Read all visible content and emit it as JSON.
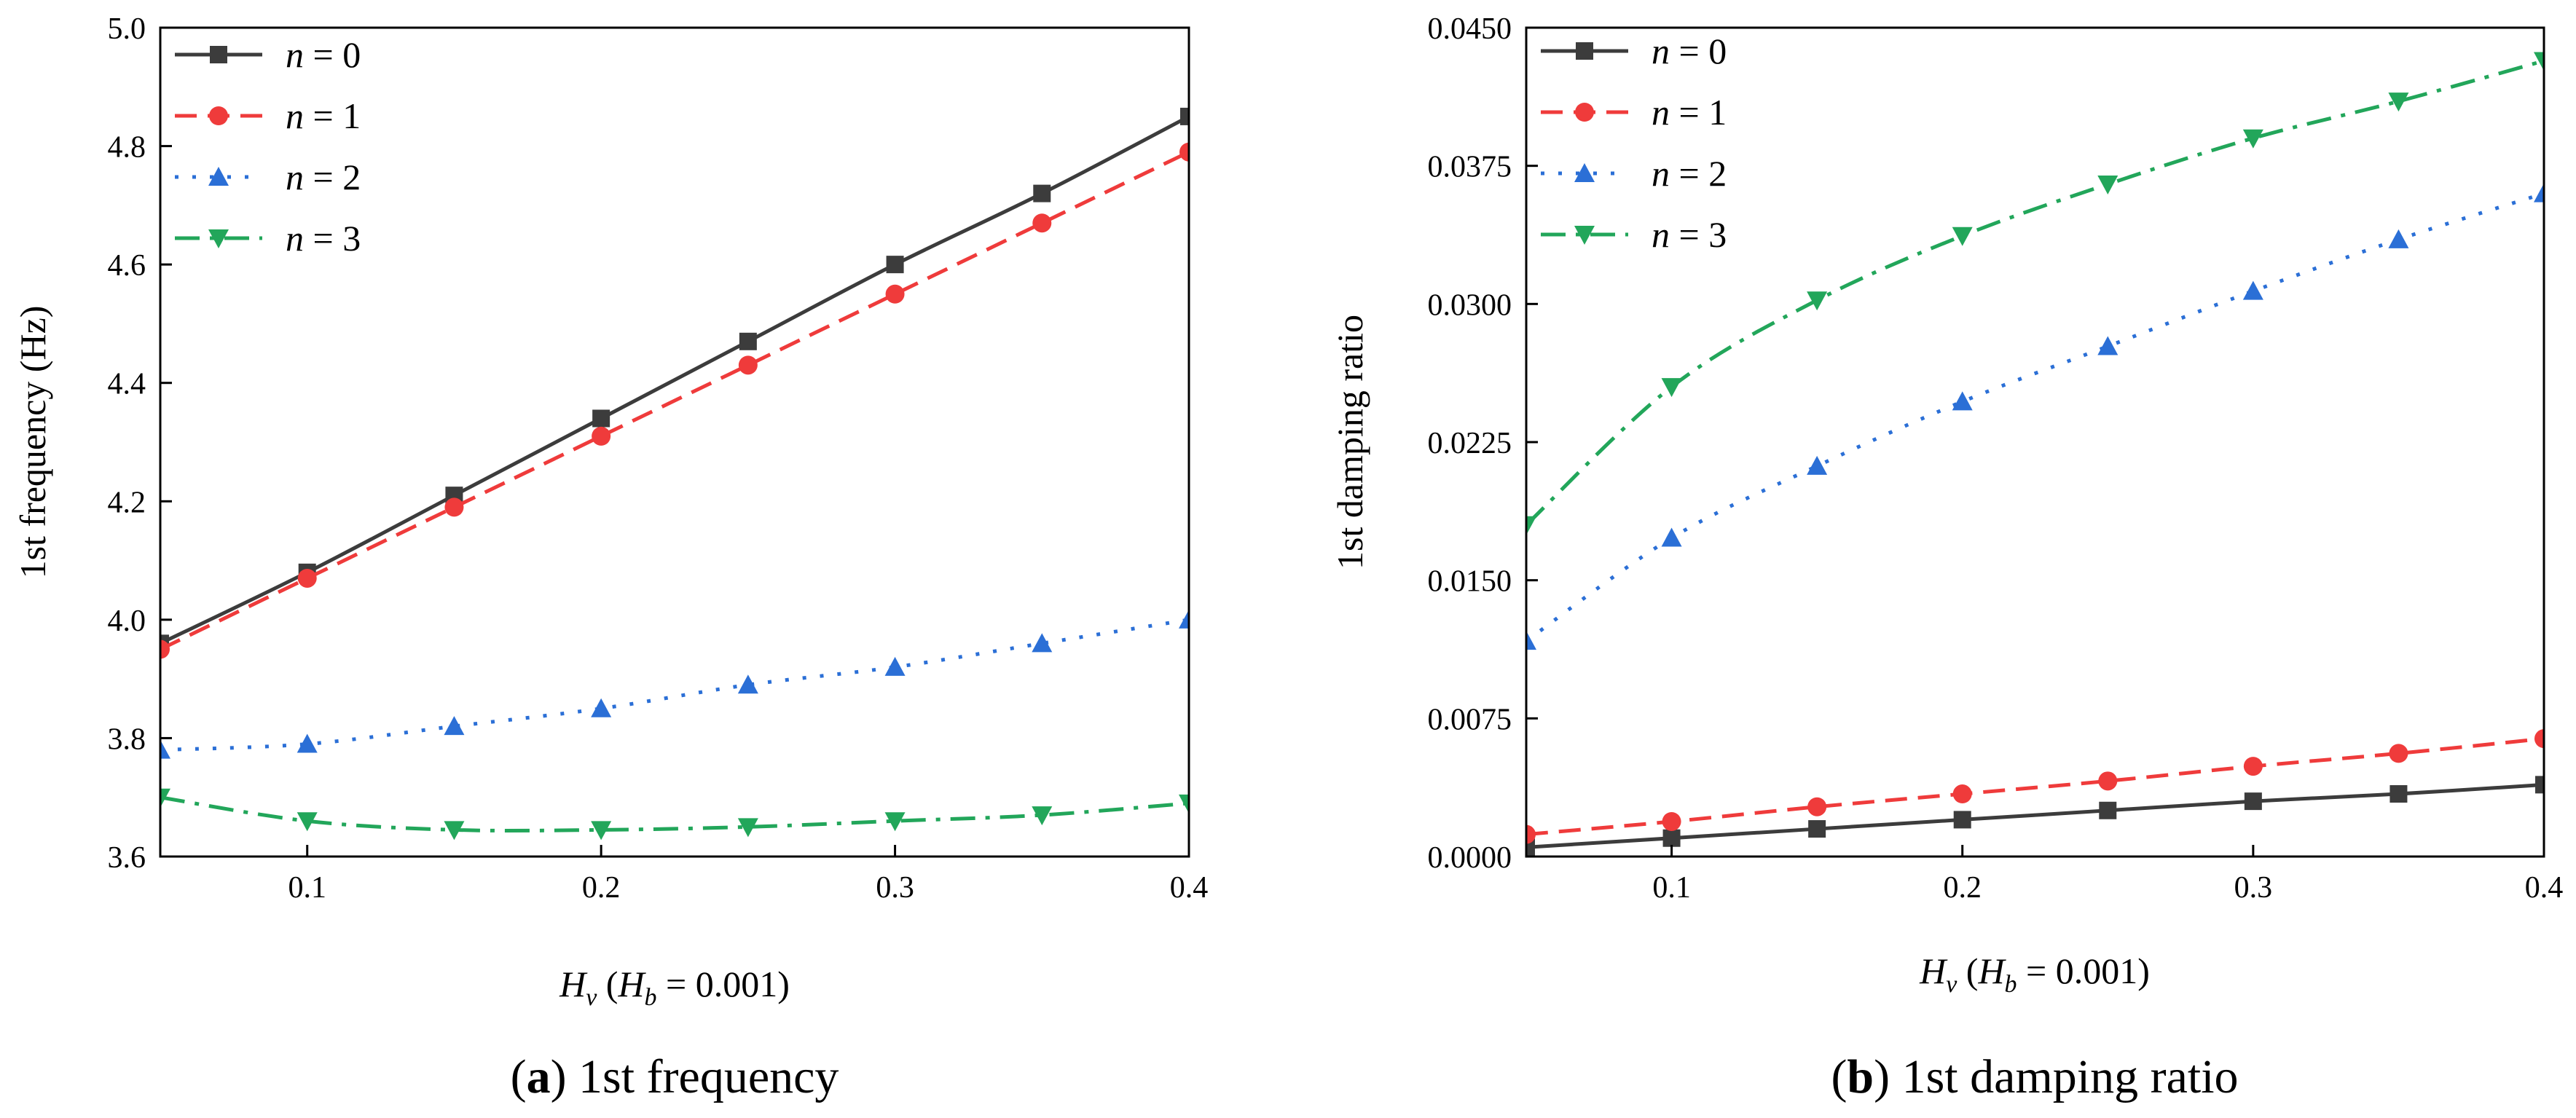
{
  "colors": {
    "n0": "#3c3c3c",
    "n1": "#ef3b3b",
    "n2": "#2b6fd6",
    "n3": "#22a65a"
  },
  "chart_data": [
    {
      "type": "line",
      "caption": {
        "letter": "a",
        "text": " 1st frequency"
      },
      "ylabel": "1st frequency (Hz)",
      "xlabel": {
        "main": "H",
        "sub": "v",
        "open": " (",
        "inner": "H",
        "inner_sub": "b",
        "rest": " = 0.001)"
      },
      "xlim": [
        0.05,
        0.4
      ],
      "ylim": [
        3.6,
        5.0
      ],
      "xticks": [
        0.1,
        0.2,
        0.3,
        0.4
      ],
      "xtick_labels": [
        "0.1",
        "0.2",
        "0.3",
        "0.4"
      ],
      "yticks": [
        3.6,
        3.8,
        4.0,
        4.2,
        4.4,
        4.6,
        4.8,
        5.0
      ],
      "ytick_labels": [
        "3.6",
        "3.8",
        "4.0",
        "4.2",
        "4.4",
        "4.6",
        "4.8",
        "5.0"
      ],
      "legend_position": "top-left",
      "x": [
        0.05,
        0.1,
        0.15,
        0.2,
        0.25,
        0.3,
        0.35,
        0.4
      ],
      "series": [
        {
          "key": "n0",
          "name_var": "n",
          "name_rest": " = 0",
          "marker": "square",
          "dash": "solid",
          "values": [
            3.96,
            4.08,
            4.21,
            4.34,
            4.47,
            4.6,
            4.72,
            4.85
          ]
        },
        {
          "key": "n1",
          "name_var": "n",
          "name_rest": " = 1",
          "marker": "circle",
          "dash": "dashed",
          "values": [
            3.95,
            4.07,
            4.19,
            4.31,
            4.43,
            4.55,
            4.67,
            4.79
          ]
        },
        {
          "key": "n2",
          "name_var": "n",
          "name_rest": " = 2",
          "marker": "triangle-up",
          "dash": "dotted",
          "values": [
            3.78,
            3.79,
            3.82,
            3.85,
            3.89,
            3.92,
            3.96,
            4.0
          ]
        },
        {
          "key": "n3",
          "name_var": "n",
          "name_rest": " = 3",
          "marker": "triangle-down",
          "dash": "dashdot",
          "values": [
            3.7,
            3.66,
            3.645,
            3.645,
            3.65,
            3.66,
            3.67,
            3.69
          ]
        }
      ]
    },
    {
      "type": "line",
      "caption": {
        "letter": "b",
        "text": " 1st damping ratio"
      },
      "ylabel": "1st damping ratio",
      "xlabel": {
        "main": "H",
        "sub": "v",
        "open": " (",
        "inner": "H",
        "inner_sub": "b",
        "rest": " = 0.001)"
      },
      "xlim": [
        0.05,
        0.4
      ],
      "ylim": [
        0.0,
        0.045
      ],
      "xticks": [
        0.1,
        0.2,
        0.3,
        0.4
      ],
      "xtick_labels": [
        "0.1",
        "0.2",
        "0.3",
        "0.4"
      ],
      "yticks": [
        0.0,
        0.0075,
        0.015,
        0.0225,
        0.03,
        0.0375,
        0.045
      ],
      "ytick_labels": [
        "0.0000",
        "0.0075",
        "0.0150",
        "0.0225",
        "0.0300",
        "0.0375",
        "0.0450"
      ],
      "legend_position": "top-left",
      "x": [
        0.05,
        0.1,
        0.15,
        0.2,
        0.25,
        0.3,
        0.35,
        0.4
      ],
      "series": [
        {
          "key": "n0",
          "name_var": "n",
          "name_rest": " = 0",
          "marker": "square",
          "dash": "solid",
          "values": [
            0.0005,
            0.001,
            0.0015,
            0.002,
            0.0025,
            0.003,
            0.0034,
            0.0039
          ]
        },
        {
          "key": "n1",
          "name_var": "n",
          "name_rest": " = 1",
          "marker": "circle",
          "dash": "dashed",
          "values": [
            0.0012,
            0.0019,
            0.0027,
            0.0034,
            0.0041,
            0.0049,
            0.0056,
            0.0064
          ]
        },
        {
          "key": "n2",
          "name_var": "n",
          "name_rest": " = 2",
          "marker": "triangle-up",
          "dash": "dotted",
          "values": [
            0.0117,
            0.0173,
            0.0212,
            0.0247,
            0.0277,
            0.0307,
            0.0335,
            0.036
          ]
        },
        {
          "key": "n3",
          "name_var": "n",
          "name_rest": " = 3",
          "marker": "triangle-down",
          "dash": "dashdot",
          "values": [
            0.018,
            0.0255,
            0.0302,
            0.0337,
            0.0365,
            0.039,
            0.041,
            0.0432
          ]
        }
      ]
    }
  ]
}
